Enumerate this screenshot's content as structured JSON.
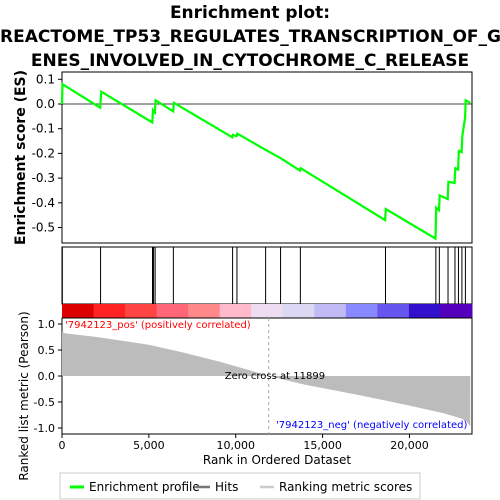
{
  "title_lines": [
    "Enrichment plot:",
    "REACTOME_TP53_REGULATES_TRANSCRIPTION_OF_G",
    "ENES_INVOLVED_IN_CYTOCHROME_C_RELEASE"
  ],
  "chart_data": {
    "type": "line",
    "es_panel": {
      "ylabel": "Enrichment score (ES)",
      "ylim": [
        -0.55,
        0.1
      ],
      "yticks": [
        "0.1",
        "0.0",
        "-0.1",
        "-0.2",
        "-0.3",
        "-0.4",
        "-0.5"
      ],
      "ytick_values": [
        0.1,
        0.0,
        -0.1,
        -0.2,
        -0.3,
        -0.4,
        -0.5
      ],
      "series": [
        {
          "name": "Enrichment profile",
          "color": "#00ff00",
          "x": [
            0,
            30,
            2200,
            2260,
            5200,
            5240,
            5350,
            5390,
            6400,
            6440,
            9800,
            9840,
            10050,
            10090,
            11700,
            12600,
            13700,
            13740,
            18600,
            18640,
            21500,
            21540,
            21700,
            21740,
            22200,
            22240,
            22600,
            22640,
            22800,
            22840,
            23000,
            23040,
            23200,
            23240,
            23500
          ],
          "y": [
            0.0,
            0.08,
            -0.015,
            0.05,
            -0.075,
            -0.025,
            -0.035,
            0.015,
            -0.03,
            0.005,
            -0.135,
            -0.125,
            -0.13,
            -0.12,
            -0.185,
            -0.22,
            -0.27,
            -0.26,
            -0.47,
            -0.425,
            -0.545,
            -0.42,
            -0.43,
            -0.37,
            -0.385,
            -0.315,
            -0.32,
            -0.26,
            -0.265,
            -0.19,
            -0.195,
            -0.13,
            -0.055,
            0.015,
            0.005
          ]
        }
      ]
    },
    "hits": [
      20,
      2220,
      5210,
      5270,
      5360,
      6410,
      9820,
      10070,
      11720,
      12580,
      13720,
      18620,
      21520,
      21720,
      22220,
      22620,
      22820,
      23020,
      23220
    ],
    "ranking_panel": {
      "ylabel": "Ranked list metric (Pearson)",
      "xlabel": "Rank in Ordered Dataset",
      "xlim": [
        0,
        23600
      ],
      "ylim": [
        -1.0,
        1.0
      ],
      "xticks": [
        "0",
        "5,000",
        "10,000",
        "15,000",
        "20,000"
      ],
      "xtick_values": [
        0,
        5000,
        10000,
        15000,
        20000
      ],
      "yticks": [
        "1.0",
        "0.5",
        "0.0",
        "-0.5",
        "-1.0"
      ],
      "ytick_values": [
        1.0,
        0.5,
        0.0,
        -0.5,
        -1.0
      ],
      "metric_x": [
        0,
        200,
        2000,
        5000,
        7000,
        9000,
        10500,
        11899,
        14000,
        17000,
        20000,
        22000,
        23000,
        23300,
        23500
      ],
      "metric_y": [
        0.85,
        0.82,
        0.75,
        0.6,
        0.45,
        0.28,
        0.14,
        0.0,
        -0.17,
        -0.36,
        -0.57,
        -0.72,
        -0.82,
        -0.88,
        -0.97
      ],
      "zero_cross_label": "Zero cross at 11899",
      "zero_cross": 11899,
      "pos_label": "'7942123_pos' (positively correlated)",
      "neg_label": "'7942123_neg' (negatively correlated)",
      "pos_color": "#ff0000",
      "neg_color": "#0000ff"
    },
    "colorbar": {
      "colors": [
        "#dd0000",
        "#ff2222",
        "#ff4444",
        "#ff6677",
        "#ff8888",
        "#ffbbcc",
        "#eeddf0",
        "#dcd8f4",
        "#c0bbf5",
        "#8888ff",
        "#6655ee",
        "#3311cc",
        "#5500bb"
      ]
    },
    "legend": {
      "items": [
        {
          "label": "Enrichment profile",
          "color": "#00ff00"
        },
        {
          "label": "Hits",
          "color": "#777777"
        },
        {
          "label": "Ranking metric scores",
          "color": "#cccccc"
        }
      ]
    }
  }
}
